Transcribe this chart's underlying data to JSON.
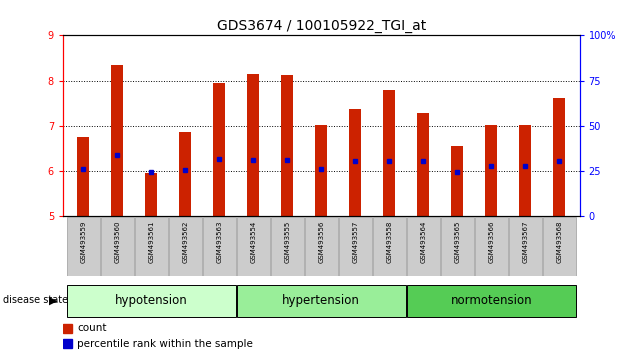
{
  "title": "GDS3674 / 100105922_TGI_at",
  "samples": [
    "GSM493559",
    "GSM493560",
    "GSM493561",
    "GSM493562",
    "GSM493563",
    "GSM493554",
    "GSM493555",
    "GSM493556",
    "GSM493557",
    "GSM493558",
    "GSM493564",
    "GSM493565",
    "GSM493566",
    "GSM493567",
    "GSM493568"
  ],
  "bar_heights": [
    6.75,
    8.35,
    5.95,
    6.85,
    7.95,
    8.15,
    8.12,
    7.02,
    7.38,
    7.78,
    7.27,
    6.55,
    7.02,
    7.02,
    7.62
  ],
  "blue_markers": [
    6.05,
    6.35,
    5.98,
    6.02,
    6.27,
    6.25,
    6.25,
    6.05,
    6.22,
    6.22,
    6.22,
    5.98,
    6.1,
    6.1,
    6.22
  ],
  "groups": [
    {
      "label": "hypotension",
      "start": 0,
      "end": 4
    },
    {
      "label": "hypertension",
      "start": 5,
      "end": 9
    },
    {
      "label": "normotension",
      "start": 10,
      "end": 14
    }
  ],
  "group_colors": [
    "#ccffcc",
    "#99ee99",
    "#55cc55"
  ],
  "ylim": [
    5,
    9
  ],
  "y_ticks_left": [
    5,
    6,
    7,
    8,
    9
  ],
  "y_ticks_right": [
    0,
    25,
    50,
    75,
    100
  ],
  "bar_color": "#cc2200",
  "blue_color": "#0000cc",
  "bar_width": 0.35,
  "background_color": "#ffffff"
}
